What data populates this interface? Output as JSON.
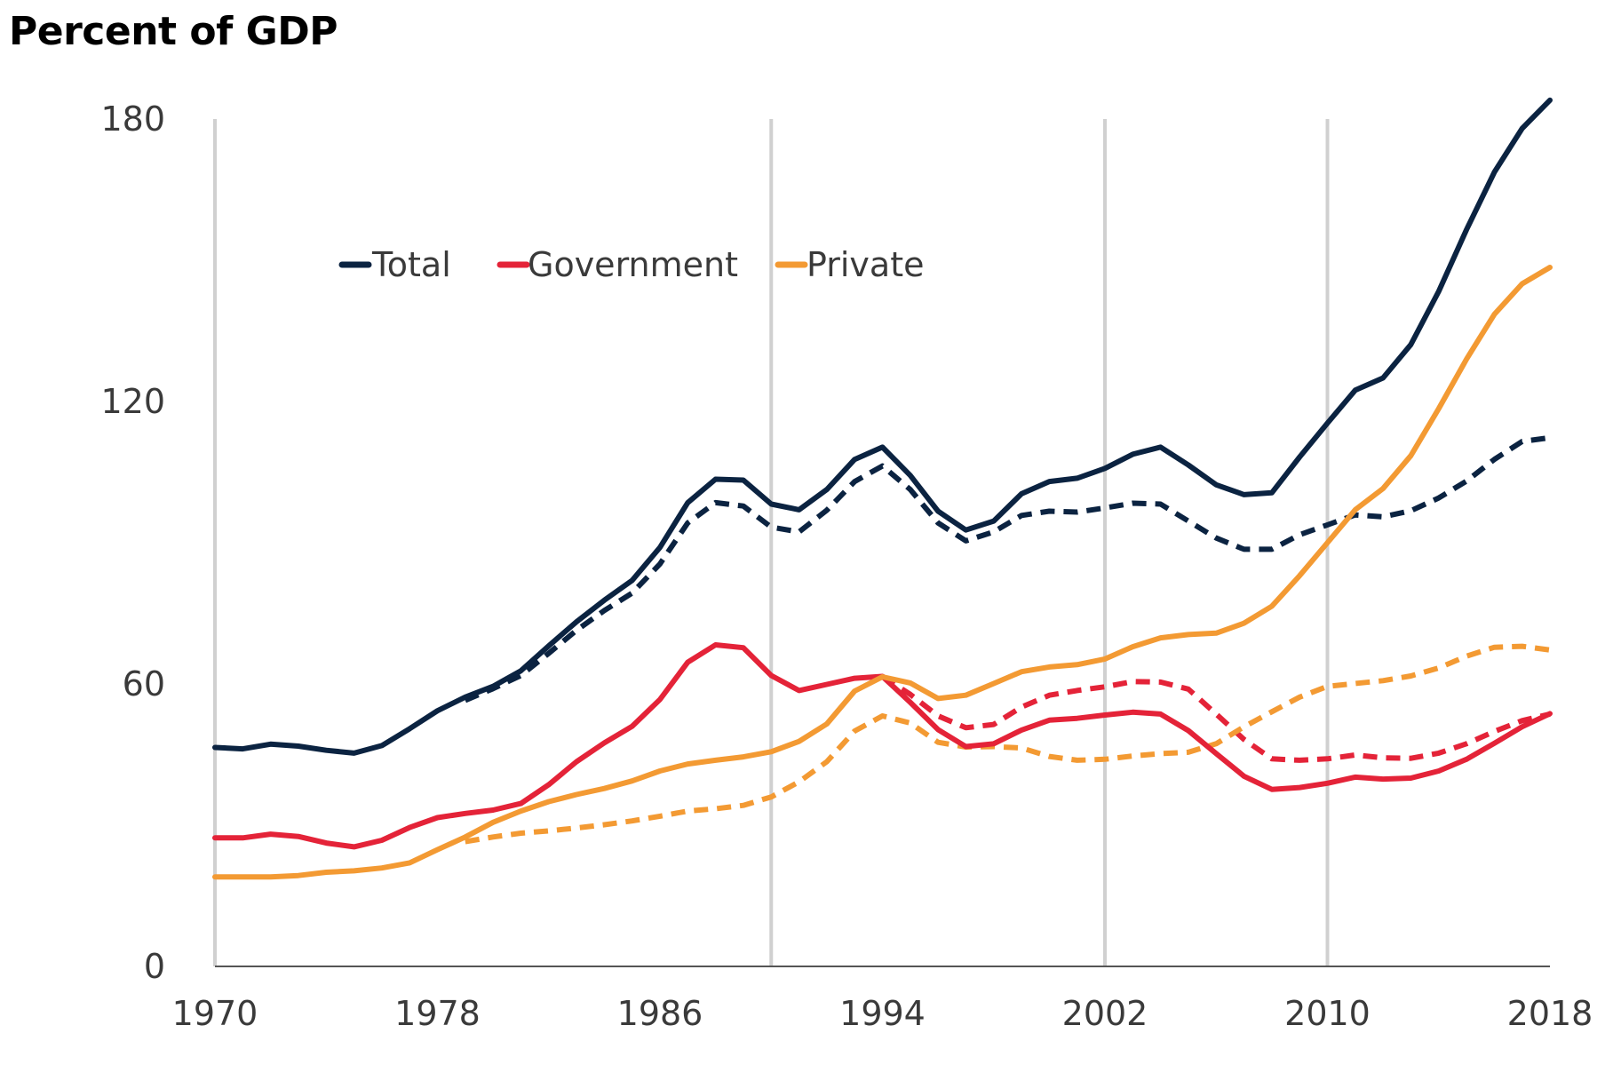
{
  "chart_data": {
    "type": "line",
    "title": "Percent of GDP",
    "xlabel": "",
    "ylabel": "",
    "xlim": [
      1970,
      2018
    ],
    "ylim": [
      0,
      180
    ],
    "x_ticks": [
      1970,
      1978,
      1986,
      1994,
      2002,
      2010,
      2018
    ],
    "y_ticks": [
      0,
      60,
      120,
      180
    ],
    "vertical_reference_lines": [
      1970,
      1990,
      2002,
      2010
    ],
    "grid": false,
    "legend_position": "top-left",
    "legend": [
      {
        "label": "Total",
        "color": "#0b2341"
      },
      {
        "label": "Government",
        "color": "#e42338"
      },
      {
        "label": "Private",
        "color": "#f39a33"
      }
    ],
    "series": [
      {
        "name": "Total",
        "style": "solid",
        "color": "#0b2341",
        "x": [
          1970,
          1971,
          1972,
          1973,
          1974,
          1975,
          1976,
          1977,
          1978,
          1979,
          1980,
          1981,
          1982,
          1983,
          1984,
          1985,
          1986,
          1987,
          1988,
          1989,
          1990,
          1991,
          1992,
          1993,
          1994,
          1995,
          1996,
          1997,
          1998,
          1999,
          2000,
          2001,
          2002,
          2003,
          2004,
          2005,
          2006,
          2007,
          2008,
          2009,
          2010,
          2011,
          2012,
          2013,
          2014,
          2015,
          2016,
          2017,
          2018
        ],
        "y": [
          46.5,
          46.2,
          47.2,
          46.8,
          45.9,
          45.3,
          46.9,
          50.5,
          54.3,
          57.2,
          59.5,
          62.8,
          68.1,
          73.2,
          77.8,
          82,
          89,
          98.5,
          103.5,
          103.3,
          98.2,
          97,
          101.3,
          107.7,
          110.3,
          104.3,
          96.7,
          92.7,
          94.6,
          100.4,
          103,
          103.7,
          105.8,
          108.8,
          110.3,
          106.5,
          102.3,
          100.2,
          100.6,
          108.2,
          115.4,
          122.4,
          125,
          132.1,
          143.4,
          156.5,
          168.7,
          178,
          184
        ]
      },
      {
        "name": "",
        "style": "dashed",
        "color": "#0b2341",
        "x": [
          1979,
          1980,
          1981,
          1982,
          1983,
          1984,
          1985,
          1986,
          1987,
          1988,
          1989,
          1990,
          1991,
          1992,
          1993,
          1994,
          1995,
          1996,
          1997,
          1998,
          1999,
          2000,
          2001,
          2002,
          2003,
          2004,
          2005,
          2006,
          2007,
          2008,
          2009,
          2010,
          2011,
          2012,
          2013,
          2014,
          2015,
          2016,
          2017,
          2018
        ],
        "y": [
          56.5,
          59,
          61.8,
          66.5,
          71.4,
          75.6,
          79.3,
          85.5,
          94.2,
          98.5,
          97.8,
          93.3,
          92.3,
          96.9,
          103,
          106.3,
          101.3,
          94.2,
          90.4,
          92.3,
          95.8,
          96.7,
          96.5,
          97.4,
          98.4,
          98.2,
          94.6,
          91,
          88.6,
          88.6,
          91.7,
          93.8,
          95.9,
          95.5,
          96.8,
          99.5,
          103.1,
          107.7,
          111.5,
          112.3
        ]
      },
      {
        "name": "Government",
        "style": "solid",
        "color": "#e42338",
        "x": [
          1970,
          1971,
          1972,
          1973,
          1974,
          1975,
          1976,
          1977,
          1978,
          1979,
          1980,
          1981,
          1982,
          1983,
          1984,
          1985,
          1986,
          1987,
          1988,
          1989,
          1990,
          1991,
          1992,
          1993,
          1994,
          1995,
          1996,
          1997,
          1998,
          1999,
          2000,
          2001,
          2002,
          2003,
          2004,
          2005,
          2006,
          2007,
          2008,
          2009,
          2010,
          2011,
          2012,
          2013,
          2014,
          2015,
          2016,
          2017,
          2018
        ],
        "y": [
          27.3,
          27.3,
          28.1,
          27.6,
          26.2,
          25.4,
          26.8,
          29.5,
          31.6,
          32.5,
          33.2,
          34.6,
          38.6,
          43.5,
          47.5,
          51,
          56.7,
          64.6,
          68.3,
          67.7,
          61.8,
          58.6,
          59.9,
          61.2,
          61.6,
          56.1,
          50.3,
          46.7,
          47.3,
          50.2,
          52.3,
          52.7,
          53.4,
          54,
          53.6,
          50.1,
          45.2,
          40.4,
          37.6,
          38,
          38.9,
          40.2,
          39.8,
          40,
          41.5,
          44,
          47.4,
          50.9,
          53.7
        ]
      },
      {
        "name": "",
        "style": "dashed",
        "color": "#e42338",
        "x": [
          1994,
          1995,
          1996,
          1997,
          1998,
          1999,
          2000,
          2001,
          2002,
          2003,
          2004,
          2005,
          2006,
          2007,
          2008,
          2009,
          2010,
          2011,
          2012,
          2013,
          2014,
          2015,
          2016,
          2017,
          2018
        ],
        "y": [
          61.6,
          57.8,
          53.2,
          50.7,
          51.4,
          55.1,
          57.6,
          58.6,
          59.4,
          60.5,
          60.4,
          58.9,
          53.6,
          48.2,
          44.1,
          43.8,
          44.1,
          44.9,
          44.3,
          44.2,
          45.3,
          47.3,
          49.9,
          52.2,
          53.6
        ]
      },
      {
        "name": "Private",
        "style": "solid",
        "color": "#f39a33",
        "x": [
          1970,
          1971,
          1972,
          1973,
          1974,
          1975,
          1976,
          1977,
          1978,
          1979,
          1980,
          1981,
          1982,
          1983,
          1984,
          1985,
          1986,
          1987,
          1988,
          1989,
          1990,
          1991,
          1992,
          1993,
          1994,
          1995,
          1996,
          1997,
          1998,
          1999,
          2000,
          2001,
          2002,
          2003,
          2004,
          2005,
          2006,
          2007,
          2008,
          2009,
          2010,
          2011,
          2012,
          2013,
          2014,
          2015,
          2016,
          2017,
          2018
        ],
        "y": [
          19,
          19,
          19,
          19.3,
          20,
          20.3,
          20.9,
          22,
          24.8,
          27.5,
          30.6,
          33,
          35,
          36.5,
          37.8,
          39.4,
          41.5,
          43,
          43.8,
          44.5,
          45.6,
          47.8,
          51.5,
          58.5,
          61.5,
          60.2,
          56.9,
          57.6,
          60.1,
          62.6,
          63.6,
          64.1,
          65.3,
          67.9,
          69.8,
          70.5,
          70.8,
          72.9,
          76.5,
          83,
          90,
          97,
          101.5,
          108.5,
          118.5,
          129,
          138.5,
          145,
          148.5
        ]
      },
      {
        "name": "",
        "style": "dashed",
        "color": "#f39a33",
        "x": [
          1979,
          1980,
          1981,
          1982,
          1983,
          1984,
          1985,
          1986,
          1987,
          1988,
          1989,
          1990,
          1991,
          1992,
          1993,
          1994,
          1995,
          1996,
          1997,
          1998,
          1999,
          2000,
          2001,
          2002,
          2003,
          2004,
          2005,
          2006,
          2007,
          2008,
          2009,
          2010,
          2011,
          2012,
          2013,
          2014,
          2015,
          2016,
          2017,
          2018
        ],
        "y": [
          26.5,
          27.5,
          28.3,
          28.8,
          29.4,
          30.1,
          30.9,
          31.9,
          33,
          33.5,
          34.2,
          36,
          39.2,
          43.5,
          50,
          53.2,
          51.7,
          47.6,
          46.6,
          46.7,
          46.4,
          44.6,
          43.8,
          44,
          44.7,
          45.2,
          45.5,
          47.3,
          50.9,
          54.1,
          57.2,
          59.5,
          60.1,
          60.7,
          61.7,
          63.4,
          65.9,
          67.8,
          68,
          67.2
        ]
      }
    ]
  }
}
